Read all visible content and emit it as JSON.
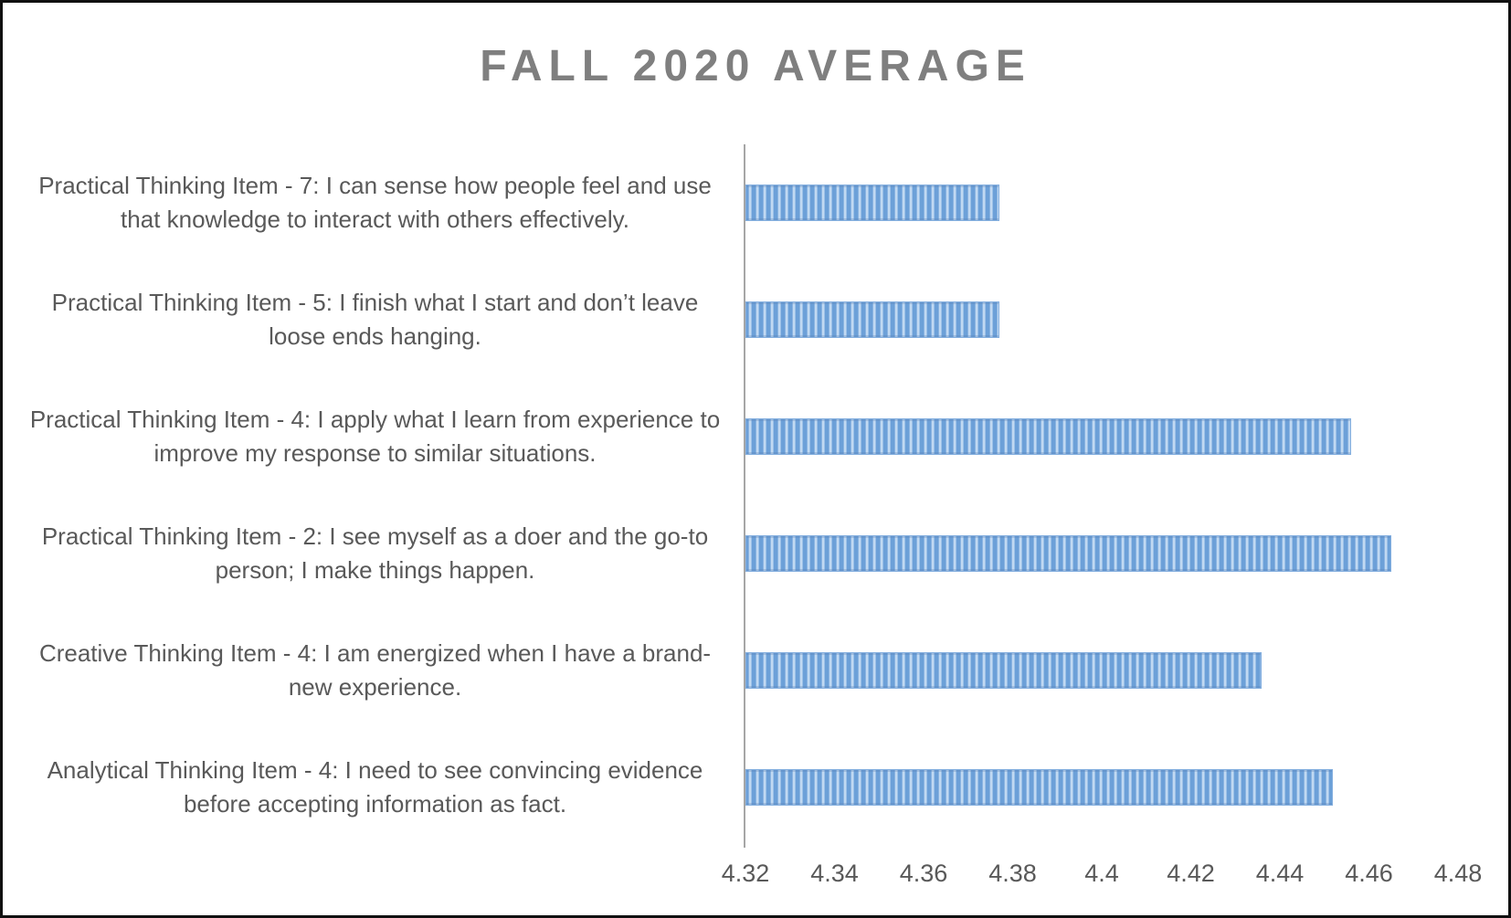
{
  "chart_data": {
    "type": "bar",
    "orientation": "horizontal",
    "title": "FALL 2020 AVERAGE",
    "categories": [
      "Practical Thinking Item - 7: I can sense how people feel and use that knowledge to interact with others effectively.",
      "Practical Thinking Item - 5: I finish what I start and don’t leave loose ends hanging.",
      "Practical Thinking Item - 4: I apply what I learn from experience to improve my response to similar situations.",
      "Practical Thinking Item - 2: I see myself as a doer and the go-to person; I make things happen.",
      "Creative Thinking Item - 4: I am energized when I have a brand-new experience.",
      "Analytical Thinking Item - 4: I need to see convincing evidence before accepting information as fact."
    ],
    "values": [
      4.377,
      4.377,
      4.456,
      4.465,
      4.436,
      4.452
    ],
    "xlabel": "",
    "ylabel": "",
    "xlim": [
      4.32,
      4.48
    ],
    "x_ticks": [
      4.32,
      4.34,
      4.36,
      4.38,
      4.4,
      4.42,
      4.44,
      4.46,
      4.48
    ],
    "x_tick_labels": [
      "4.32",
      "4.34",
      "4.36",
      "4.38",
      "4.4",
      "4.42",
      "4.44",
      "4.46",
      "4.48"
    ],
    "grid": false,
    "legend": false,
    "colors": {
      "bar_base": "#6ca0d8",
      "bar_stripe_light": "#c1d9f2",
      "bar_border": "#84afdf",
      "axis_line": "#a6a6a6",
      "title": "#7f7f7f",
      "label": "#595959",
      "tick": "#595959",
      "frame": "#111111"
    }
  }
}
